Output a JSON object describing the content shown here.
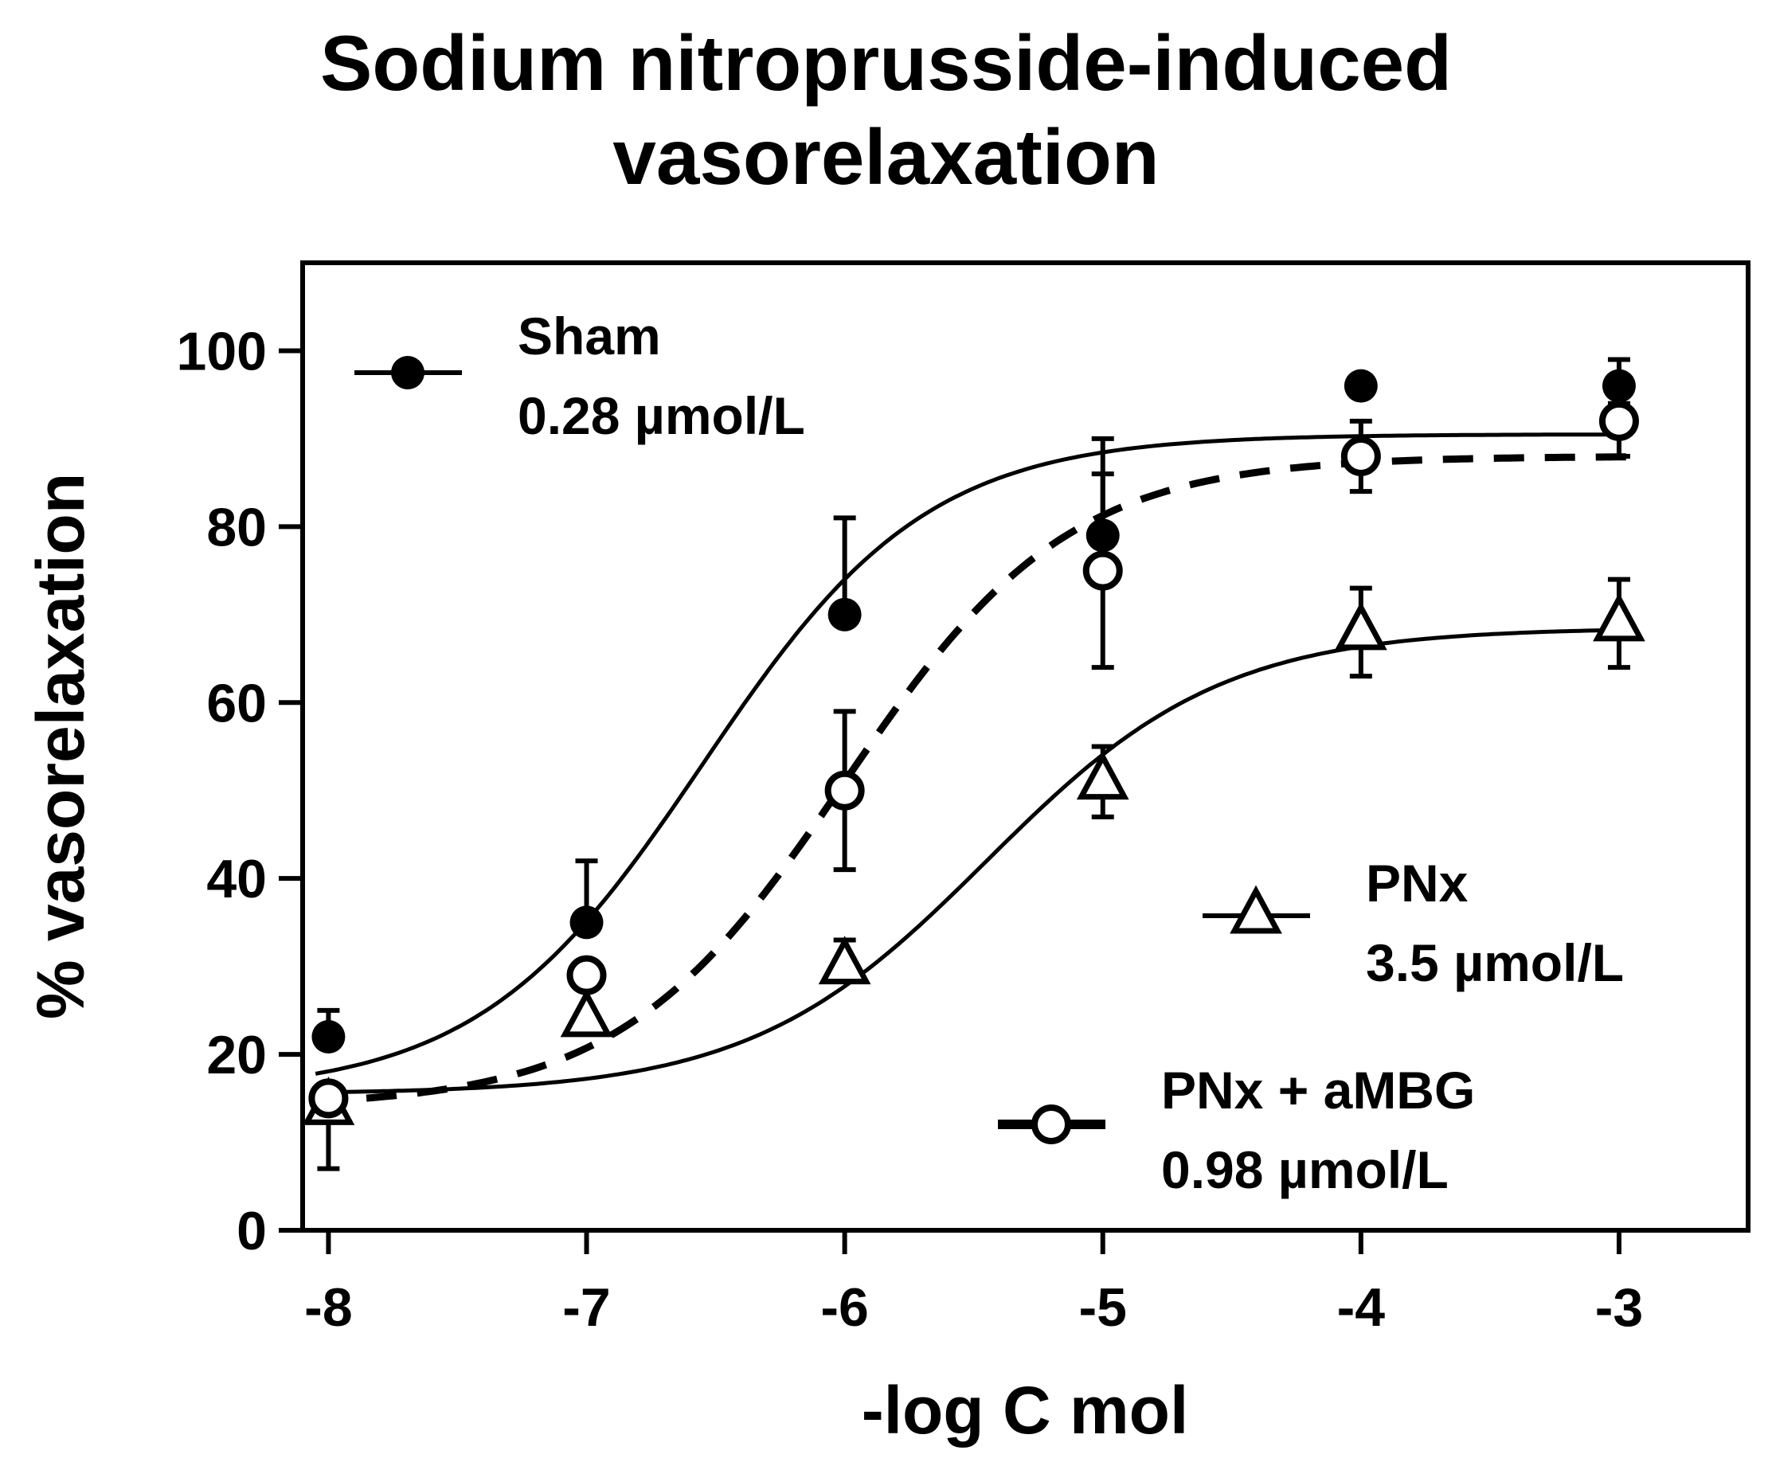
{
  "chart_data": {
    "type": "line",
    "title_line1": "Sodium nitroprusside-induced",
    "title_line2": "vasorelaxation",
    "xlabel": "-log C mol",
    "ylabel": "% vasorelaxation",
    "xlim": [
      -8.1,
      -2.5
    ],
    "ylim": [
      0,
      110
    ],
    "x": [
      -8,
      -7,
      -6,
      -5,
      -4,
      -3
    ],
    "x_tick_labels": [
      "-8",
      "-7",
      "-6",
      "-5",
      "-4",
      "-3"
    ],
    "y_ticks": [
      0,
      20,
      40,
      60,
      80,
      100
    ],
    "y_tick_labels": [
      "0",
      "20",
      "40",
      "60",
      "80",
      "100"
    ],
    "series": [
      {
        "name": "Sham",
        "ec50_label": "0.28 µmol/L",
        "marker": "filled-circle",
        "line_style": "solid",
        "values": [
          22,
          35,
          70,
          79,
          96,
          96
        ],
        "error_upper": [
          3,
          7,
          11,
          11,
          0,
          3
        ],
        "error_lower": [
          0,
          0,
          0,
          0,
          0,
          0
        ],
        "fit": {
          "bottom": 15.5,
          "top": 90.5,
          "log_ec50": -6.55,
          "hill": 1.0
        }
      },
      {
        "name": "PNx + aMBG",
        "ec50_label": "0.98 µmol/L",
        "marker": "open-circle",
        "line_style": "dashed",
        "values": [
          15,
          29,
          50,
          75,
          88,
          92
        ],
        "error_upper": [
          0,
          0,
          9,
          11,
          4,
          2
        ],
        "error_lower": [
          8,
          0,
          9,
          11,
          4,
          4
        ],
        "fit": {
          "bottom": 14,
          "top": 88,
          "log_ec50": -6.0,
          "hill": 1.0
        }
      },
      {
        "name": "PNx",
        "ec50_label": "3.5 µmol/L",
        "marker": "open-triangle",
        "line_style": "solid",
        "values": [
          14,
          24,
          30,
          51,
          68,
          69
        ],
        "error_upper": [
          0,
          0,
          3,
          4,
          5,
          5
        ],
        "error_lower": [
          0,
          0,
          0,
          4,
          5,
          5
        ],
        "fit": {
          "bottom": 15.5,
          "top": 68.5,
          "log_ec50": -5.45,
          "hill": 0.95
        }
      }
    ],
    "legend_placement": "upper-left, right-middle, bottom-right (inline labels)",
    "grid": false
  }
}
